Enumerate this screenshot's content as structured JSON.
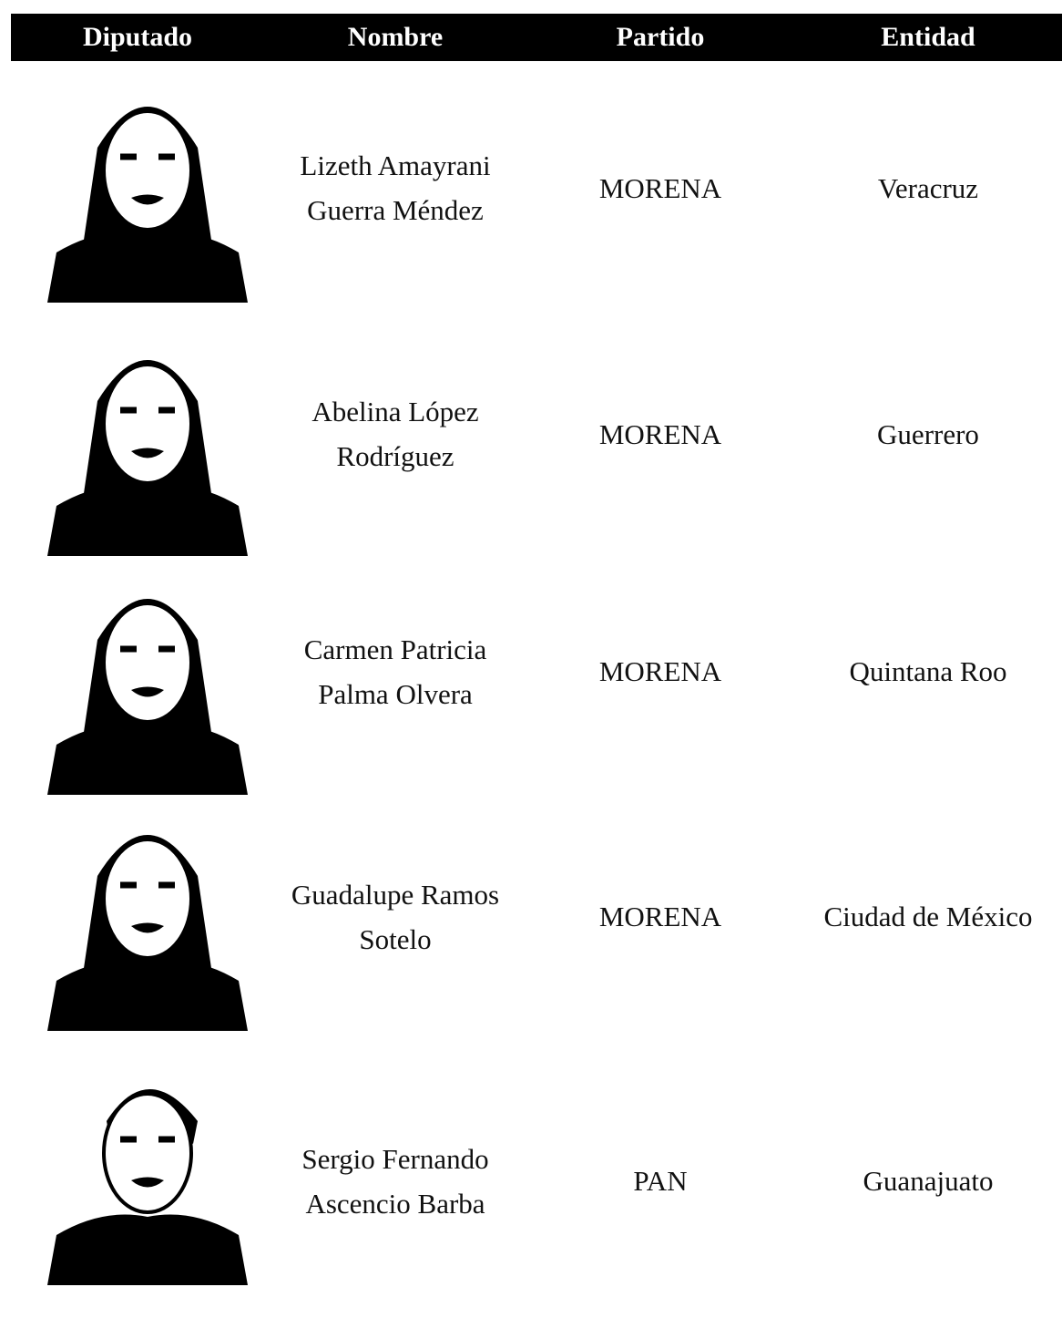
{
  "table": {
    "header": [
      "Diputado",
      "Nombre",
      "Partido",
      "Entidad"
    ],
    "rows": [
      {
        "name": "Lizeth Amayrani Guerra Méndez",
        "party": "MORENA",
        "state": "Veracruz"
      },
      {
        "name": "Abelina López Rodríguez",
        "party": "MORENA",
        "state": "Guerrero"
      },
      {
        "name": "Carmen Patricia Palma Olvera",
        "party": "MORENA",
        "state": "Quintana Roo"
      },
      {
        "name": "Guadalupe Ramos Sotelo",
        "party": "MORENA",
        "state": "Ciudad de México"
      },
      {
        "name": "Sergio Fernando Ascencio Barba",
        "party": "PAN",
        "state": "Guanajuato"
      }
    ]
  }
}
